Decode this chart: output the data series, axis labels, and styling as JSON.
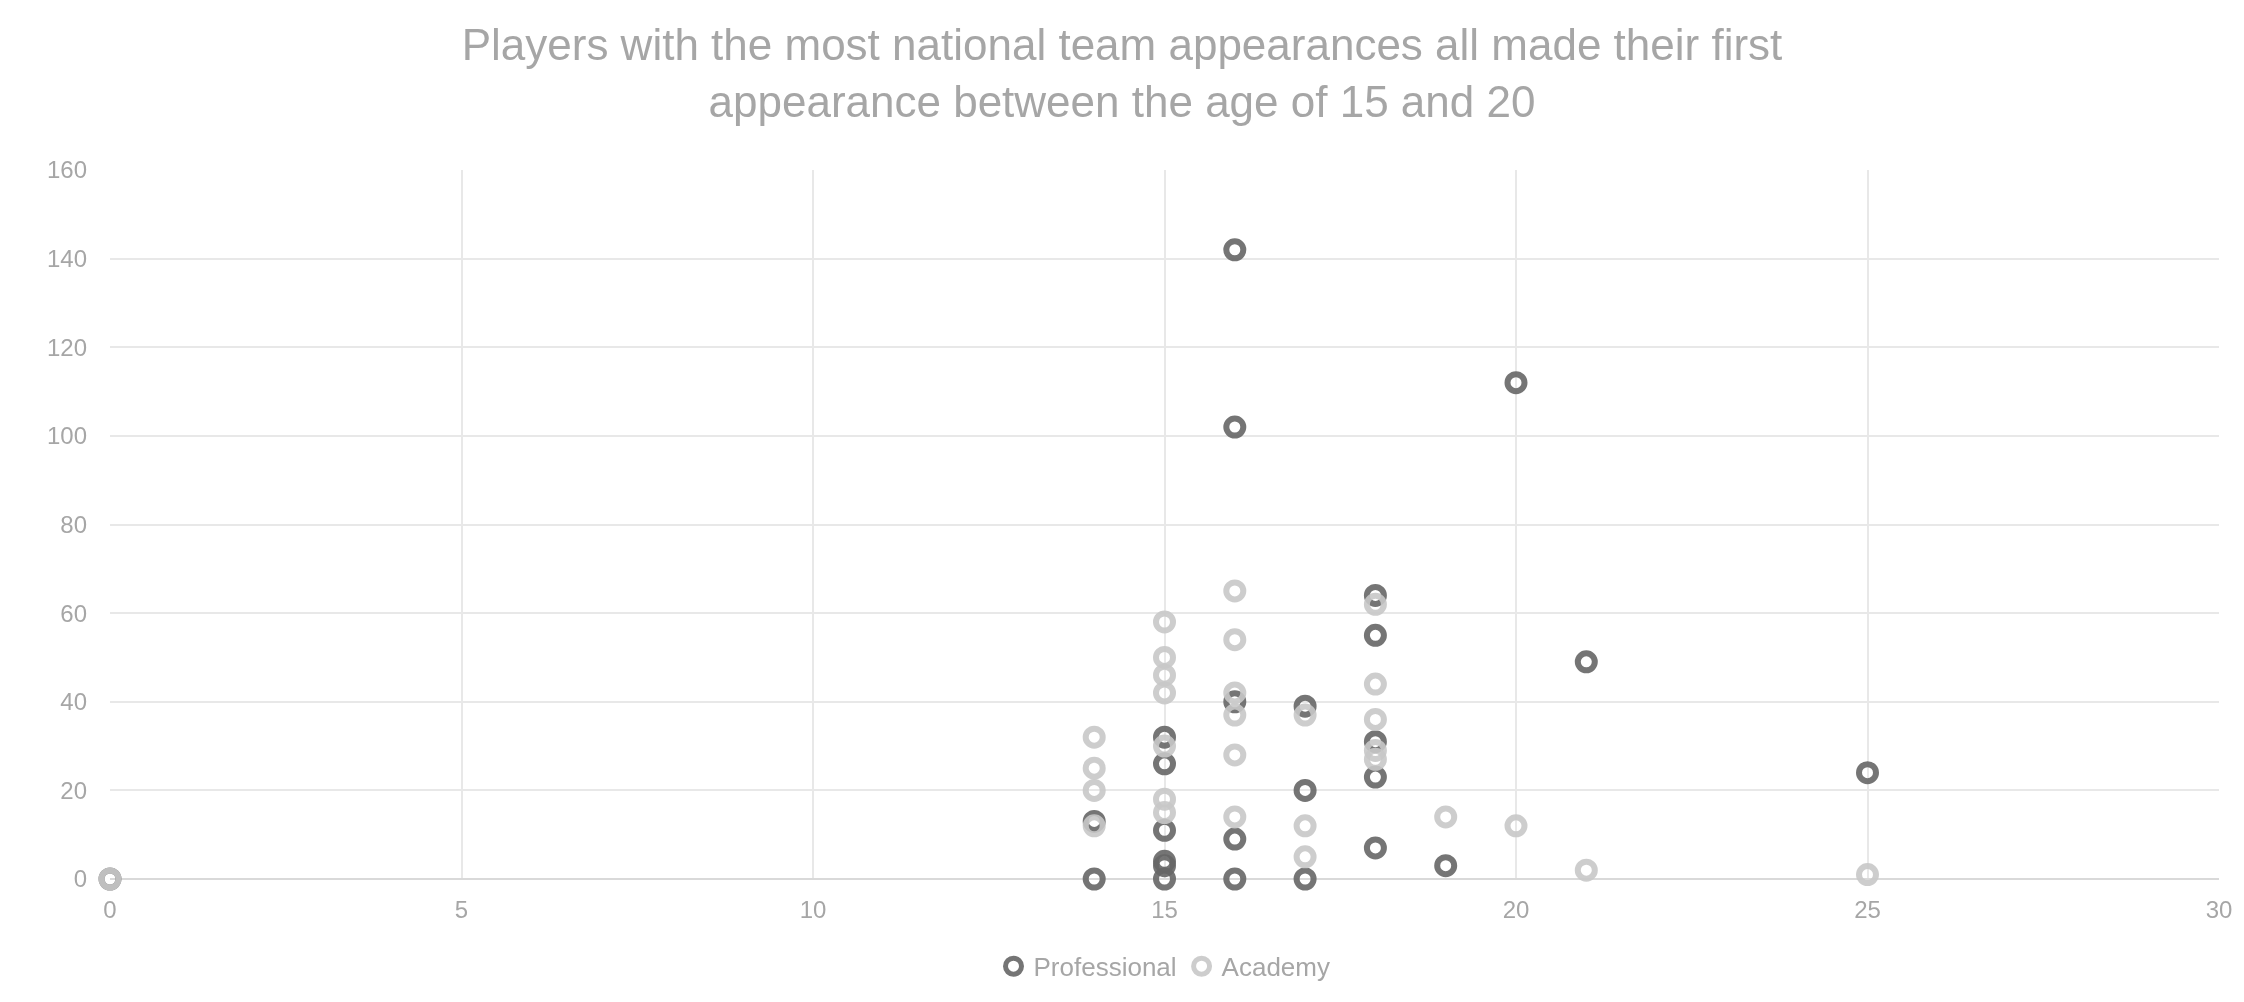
{
  "chart_data": {
    "type": "scatter",
    "title": "Players with the most national team appearances all made their first appearance between the age of 15 and 20",
    "series": [
      {
        "name": "Professional",
        "color": "#666666",
        "x": [
          0,
          14,
          14,
          15,
          15,
          15,
          15,
          15,
          15,
          16,
          16,
          16,
          16,
          16,
          17,
          17,
          17,
          18,
          18,
          18,
          18,
          18,
          19,
          20,
          21,
          25
        ],
        "values": [
          0,
          13,
          0,
          32,
          26,
          11,
          4,
          3,
          0,
          142,
          102,
          40,
          9,
          0,
          39,
          20,
          0,
          64,
          55,
          31,
          23,
          7,
          3,
          112,
          49,
          24
        ]
      },
      {
        "name": "Academy",
        "color": "#c8c8c8",
        "x": [
          0,
          14,
          14,
          14,
          14,
          15,
          15,
          15,
          15,
          15,
          15,
          15,
          16,
          16,
          16,
          16,
          16,
          16,
          17,
          17,
          17,
          18,
          18,
          18,
          18,
          18,
          19,
          20,
          21,
          25
        ],
        "values": [
          0,
          32,
          25,
          20,
          12,
          58,
          50,
          46,
          42,
          30,
          18,
          15,
          65,
          54,
          42,
          37,
          28,
          14,
          37,
          12,
          5,
          62,
          44,
          36,
          29,
          27,
          14,
          12,
          2,
          1
        ]
      }
    ],
    "xlim": [
      0,
      30
    ],
    "xticks": [
      0,
      5,
      10,
      15,
      20,
      25,
      30
    ],
    "ylim": [
      0,
      160
    ],
    "yticks": [
      0,
      20,
      40,
      60,
      80,
      100,
      120,
      140,
      160
    ],
    "grid": true,
    "legend": "bottom",
    "marker": "circle"
  }
}
